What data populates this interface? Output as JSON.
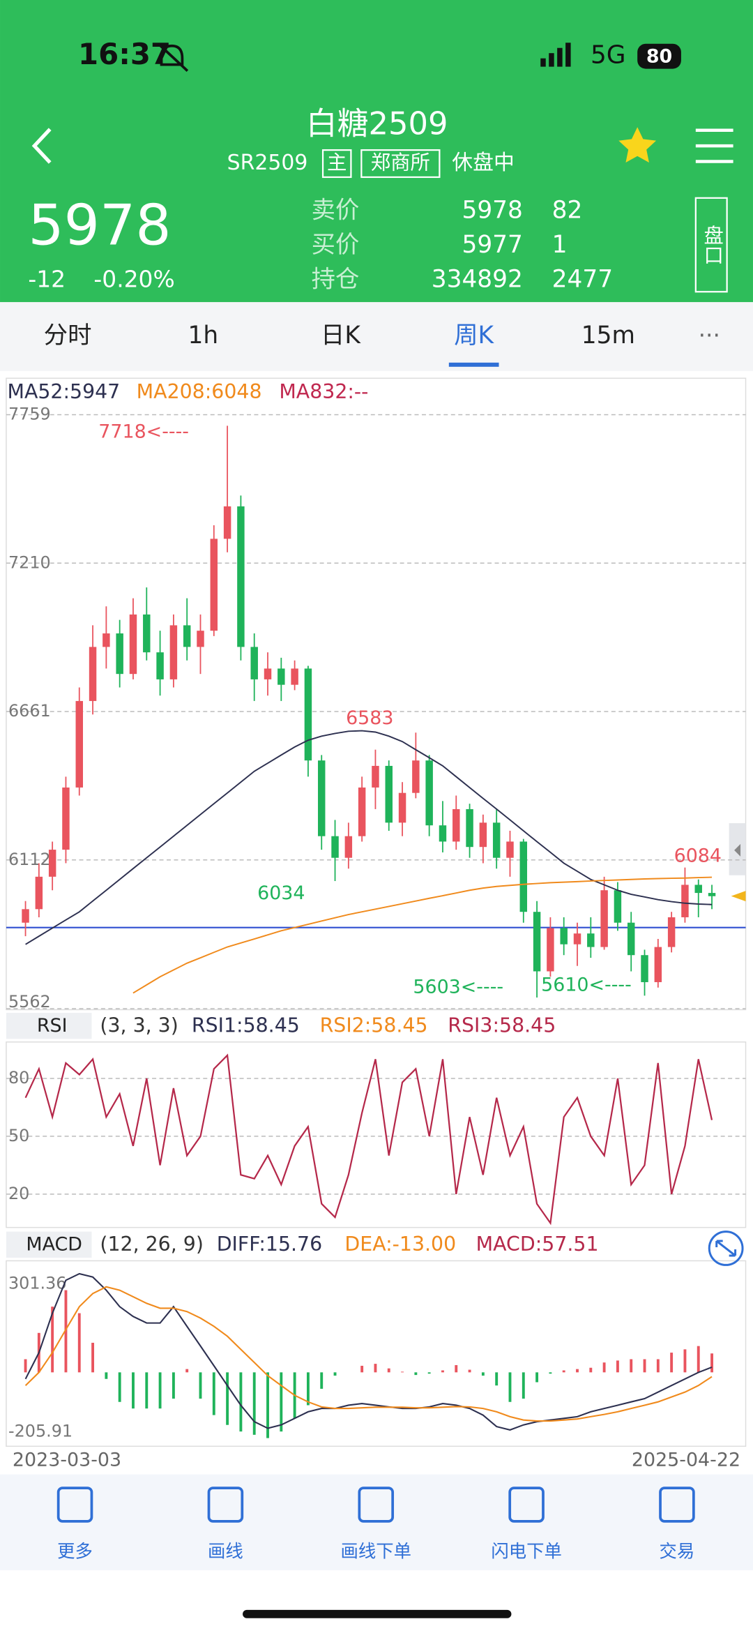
{
  "status_bar": {
    "time": "16:37",
    "network": "5G",
    "battery": "80"
  },
  "header": {
    "title": "白糖2509",
    "code": "SR2509",
    "tag_main": "主",
    "exchange": "郑商所",
    "state": "休盘中"
  },
  "quote": {
    "price": "5978",
    "change": "-12",
    "change_pct": "-0.20%",
    "rows": [
      [
        "卖价",
        "5978",
        "82"
      ],
      [
        "买价",
        "5977",
        "1"
      ],
      [
        "持仓",
        "334892",
        "2477"
      ]
    ],
    "depth_button": "盘口"
  },
  "tabs": {
    "items": [
      "分时",
      "1h",
      "日K",
      "周K",
      "15m"
    ],
    "active": 3
  },
  "chart_data": [
    {
      "type": "candlestick",
      "ylim": [
        5562,
        7759
      ],
      "yticks": [
        5562,
        6112,
        6661,
        7210,
        7759
      ],
      "grid": true,
      "up_color": "#e9545e",
      "down_color": "#1fb35a",
      "open": [
        5880,
        5930,
        6050,
        6150,
        6380,
        6700,
        6900,
        6950,
        6800,
        7020,
        6880,
        6780,
        6980,
        6900,
        6960,
        7300,
        7420,
        6900,
        6780,
        6820,
        6760,
        6820,
        6480,
        6200,
        6120,
        6200,
        6380,
        6460,
        6250,
        6360,
        6480,
        6240,
        6180,
        6300,
        6160,
        6250,
        6120,
        6180,
        5920,
        5700,
        5860,
        5800,
        5840,
        5790,
        6000,
        5880,
        5760,
        5660,
        5790,
        5900,
        6020,
        5990
      ],
      "high": [
        5960,
        6100,
        6180,
        6420,
        6750,
        6980,
        7050,
        7000,
        7080,
        7120,
        6960,
        7020,
        7080,
        7020,
        7350,
        7718,
        7460,
        6950,
        6880,
        6860,
        6850,
        6830,
        6500,
        6260,
        6250,
        6420,
        6520,
        6480,
        6400,
        6583,
        6500,
        6330,
        6350,
        6320,
        6280,
        6300,
        6220,
        6190,
        5960,
        5900,
        5900,
        5880,
        5900,
        6050,
        6030,
        5920,
        5780,
        5820,
        5920,
        6084,
        6040,
        6020
      ],
      "low": [
        5830,
        5900,
        6000,
        6100,
        6350,
        6650,
        6820,
        6750,
        6780,
        6850,
        6720,
        6750,
        6850,
        6800,
        6940,
        7250,
        6850,
        6700,
        6720,
        6700,
        6740,
        6420,
        6150,
        6034,
        6080,
        6180,
        6300,
        6220,
        6200,
        6340,
        6200,
        6140,
        6150,
        6120,
        6100,
        6080,
        6050,
        5880,
        5603,
        5680,
        5760,
        5720,
        5750,
        5780,
        5850,
        5700,
        5610,
        5640,
        5770,
        5880,
        5900,
        5930
      ],
      "close": [
        5930,
        6050,
        6150,
        6380,
        6700,
        6900,
        6950,
        6800,
        7020,
        6880,
        6780,
        6980,
        6900,
        6960,
        7300,
        7420,
        6900,
        6780,
        6820,
        6760,
        6820,
        6480,
        6200,
        6120,
        6200,
        6380,
        6460,
        6250,
        6360,
        6480,
        6240,
        6180,
        6300,
        6160,
        6250,
        6120,
        6180,
        5920,
        5700,
        5860,
        5800,
        5840,
        5790,
        6000,
        5880,
        5760,
        5660,
        5790,
        5900,
        6020,
        5990,
        5978
      ],
      "series": [
        {
          "name": "MA52:5947",
          "color": "#2d3050",
          "values": [
            5800,
            5830,
            5860,
            5890,
            5920,
            5960,
            6000,
            6040,
            6080,
            6120,
            6160,
            6200,
            6240,
            6280,
            6320,
            6360,
            6400,
            6440,
            6470,
            6500,
            6530,
            6555,
            6570,
            6580,
            6588,
            6590,
            6585,
            6570,
            6550,
            6520,
            6490,
            6460,
            6420,
            6380,
            6340,
            6300,
            6260,
            6220,
            6180,
            6140,
            6100,
            6070,
            6040,
            6020,
            6000,
            5985,
            5975,
            5965,
            5958,
            5952,
            5949,
            5947
          ]
        },
        {
          "name": "MA208:6048",
          "color": "#f08a1c",
          "values": [
            null,
            null,
            null,
            null,
            null,
            null,
            null,
            null,
            5620,
            5650,
            5680,
            5705,
            5730,
            5750,
            5770,
            5790,
            5805,
            5820,
            5835,
            5850,
            5862,
            5874,
            5886,
            5898,
            5910,
            5920,
            5930,
            5940,
            5950,
            5960,
            5970,
            5980,
            5990,
            6000,
            6008,
            6014,
            6018,
            6022,
            6025,
            6028,
            6030,
            6032,
            6034,
            6036,
            6038,
            6040,
            6042,
            6043,
            6044,
            6045,
            6047,
            6048
          ]
        },
        {
          "name": "MA832:--",
          "color": "#c0284f",
          "values": []
        }
      ],
      "reference_line": {
        "value": 5862,
        "color": "#2f4fd0"
      },
      "annotations": [
        {
          "text": "7718<----",
          "color": "#e9545e"
        },
        {
          "text": "6583",
          "color": "#e9545e"
        },
        {
          "text": "6034",
          "color": "#1fb35a"
        },
        {
          "text": "5603<----",
          "color": "#1fb35a"
        },
        {
          "text": "5610<----",
          "color": "#1fb35a"
        },
        {
          "text": "6084",
          "color": "#e9545e"
        }
      ]
    },
    {
      "type": "line",
      "indicator": "RSI",
      "params": "(3, 3, 3)",
      "ylim": [
        0,
        100
      ],
      "yticks": [
        20,
        50,
        80
      ],
      "grid": true,
      "legend": [
        {
          "text": "RSI1:58.45",
          "color": "#2d3050"
        },
        {
          "text": "RSI2:58.45",
          "color": "#f08a1c"
        },
        {
          "text": "RSI3:58.45",
          "color": "#b5284a"
        }
      ],
      "series": [
        {
          "color": "#b5284a",
          "values": [
            70,
            85,
            60,
            88,
            82,
            90,
            60,
            72,
            45,
            80,
            35,
            75,
            40,
            50,
            85,
            92,
            30,
            28,
            40,
            25,
            45,
            55,
            15,
            8,
            30,
            62,
            90,
            40,
            78,
            85,
            50,
            90,
            20,
            60,
            30,
            70,
            40,
            55,
            15,
            5,
            60,
            70,
            50,
            40,
            80,
            25,
            35,
            88,
            20,
            45,
            90,
            58.45
          ]
        }
      ]
    },
    {
      "type": "macd",
      "indicator": "MACD",
      "params": "(12, 26, 9)",
      "ylim": [
        -205.91,
        301.36
      ],
      "yticks": [
        -205.91,
        301.36
      ],
      "legend": [
        {
          "text": "DIFF:15.76",
          "color": "#2d3050"
        },
        {
          "text": "DEA:-13.00",
          "color": "#f08a1c"
        },
        {
          "text": "MACD:57.51",
          "color": "#b5284a"
        }
      ],
      "series": [
        {
          "color": "#2d3050",
          "values": [
            -20,
            60,
            180,
            280,
            300,
            290,
            250,
            200,
            170,
            150,
            150,
            200,
            140,
            80,
            20,
            -40,
            -100,
            -150,
            -170,
            -160,
            -140,
            -120,
            -110,
            -110,
            -100,
            -95,
            -100,
            -105,
            -110,
            -110,
            -105,
            -95,
            -100,
            -110,
            -130,
            -165,
            -175,
            -160,
            -150,
            -145,
            -140,
            -135,
            -120,
            -110,
            -100,
            -90,
            -80,
            -60,
            -40,
            -20,
            0,
            15.76
          ]
        },
        {
          "color": "#f08a1c",
          "values": [
            -40,
            0,
            60,
            130,
            200,
            240,
            260,
            250,
            230,
            210,
            195,
            195,
            185,
            165,
            140,
            110,
            70,
            30,
            -10,
            -40,
            -70,
            -90,
            -105,
            -110,
            -110,
            -108,
            -106,
            -106,
            -106,
            -108,
            -108,
            -106,
            -104,
            -105,
            -110,
            -120,
            -135,
            -145,
            -148,
            -148,
            -145,
            -142,
            -135,
            -128,
            -120,
            -110,
            -100,
            -90,
            -75,
            -60,
            -40,
            -13.0
          ]
        }
      ],
      "histogram": [
        40,
        120,
        200,
        250,
        180,
        90,
        -20,
        -90,
        -110,
        -110,
        -110,
        -80,
        10,
        -80,
        -130,
        -160,
        -180,
        -190,
        -200,
        -180,
        -140,
        -100,
        -50,
        -10,
        0,
        20,
        26,
        12,
        2,
        -8,
        -4,
        6,
        22,
        8,
        -10,
        -40,
        -90,
        -80,
        -30,
        -4,
        6,
        10,
        14,
        30,
        36,
        40,
        40,
        40,
        60,
        70,
        80,
        57.51
      ],
      "up_color": "#e9545e",
      "down_color": "#1fb35a",
      "x_labels": [
        "2023-03-03",
        "2025-04-22"
      ]
    }
  ],
  "toolbar": [
    "更多",
    "画线",
    "画线下单",
    "闪电下单",
    "交易"
  ]
}
